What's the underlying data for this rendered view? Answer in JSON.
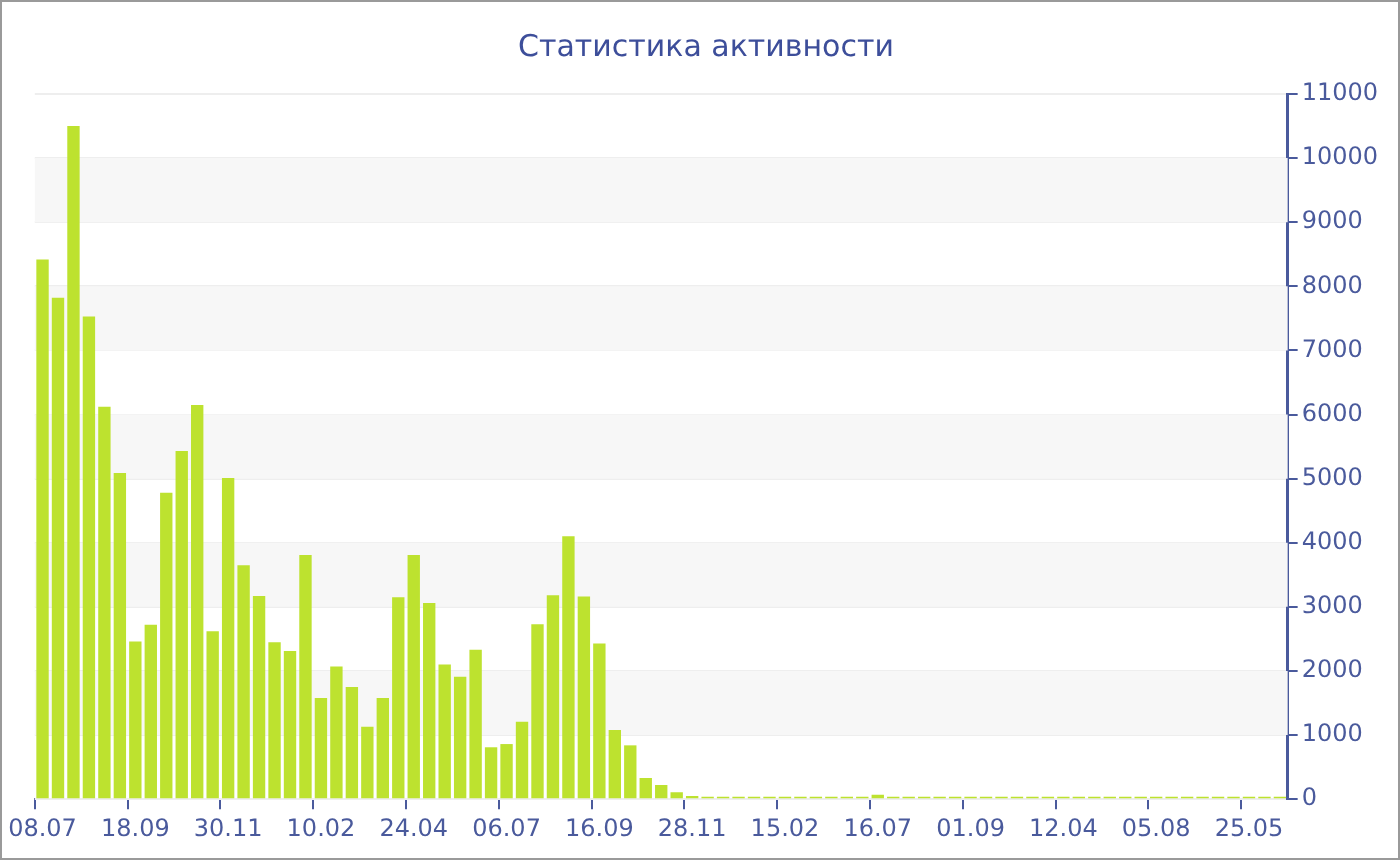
{
  "chart_data": {
    "type": "bar",
    "title": "Статистика активности",
    "categories": [
      "08.07",
      null,
      null,
      null,
      null,
      null,
      "18.09",
      null,
      null,
      null,
      null,
      null,
      "30.11",
      null,
      null,
      null,
      null,
      null,
      "10.02",
      null,
      null,
      null,
      null,
      null,
      "24.04",
      null,
      null,
      null,
      null,
      null,
      "06.07",
      null,
      null,
      null,
      null,
      null,
      "16.09",
      null,
      null,
      null,
      null,
      null,
      "28.11",
      null,
      null,
      null,
      null,
      null,
      "15.02",
      null,
      null,
      null,
      null,
      null,
      "16.07",
      null,
      null,
      null,
      null,
      null,
      "01.09",
      null,
      null,
      null,
      null,
      null,
      "12.04",
      null,
      null,
      null,
      null,
      null,
      "05.08",
      null,
      null,
      null,
      null,
      null,
      "25.05",
      null,
      null
    ],
    "values": [
      8420,
      7820,
      10500,
      7530,
      6120,
      5090,
      2460,
      2720,
      4780,
      5430,
      6150,
      2620,
      5010,
      3650,
      3170,
      2450,
      2310,
      3810,
      1580,
      2070,
      1750,
      1130,
      1580,
      3150,
      3810,
      3060,
      2100,
      1910,
      2330,
      810,
      860,
      1210,
      2730,
      3180,
      4100,
      3160,
      2430,
      1080,
      840,
      330,
      220,
      110,
      50,
      40,
      40,
      40,
      40,
      40,
      40,
      40,
      40,
      40,
      40,
      40,
      70,
      40,
      40,
      40,
      40,
      40,
      40,
      40,
      40,
      40,
      40,
      40,
      40,
      40,
      40,
      40,
      40,
      40,
      40,
      40,
      40,
      40,
      40,
      40,
      40,
      40,
      40
    ],
    "color": "#bde22f",
    "ylim": [
      0,
      11000
    ],
    "yticks": [
      0,
      1000,
      2000,
      3000,
      4000,
      5000,
      6000,
      7000,
      8000,
      9000,
      10000,
      11000
    ],
    "grid": "y"
  }
}
